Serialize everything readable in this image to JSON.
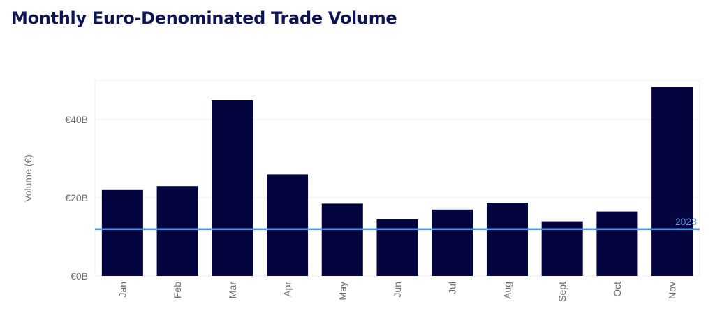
{
  "header": {
    "title": "Monthly Euro-Denominated Trade Volume"
  },
  "colors": {
    "bar": "#04043f",
    "reference_line": "#4f93e6",
    "grid": "#ececec",
    "title": "#0d1452"
  },
  "chart_data": {
    "type": "bar",
    "title": "Monthly Euro-Denominated Trade Volume",
    "xlabel": "",
    "ylabel": "Volume (€)",
    "categories": [
      "Jan",
      "Feb",
      "Mar",
      "Apr",
      "May",
      "Jun",
      "Jul",
      "Aug",
      "Sept",
      "Oct",
      "Nov"
    ],
    "values": [
      22,
      23,
      45,
      26,
      18.5,
      14.5,
      17,
      18.7,
      14,
      16.5,
      48.3
    ],
    "ylim": [
      0,
      50
    ],
    "yticks": [
      0,
      20,
      40
    ],
    "ytick_labels": [
      "€0B",
      "€20B",
      "€40B"
    ],
    "reference_line": {
      "label": "2023",
      "value": 12
    },
    "grid": true,
    "legend": "none"
  }
}
